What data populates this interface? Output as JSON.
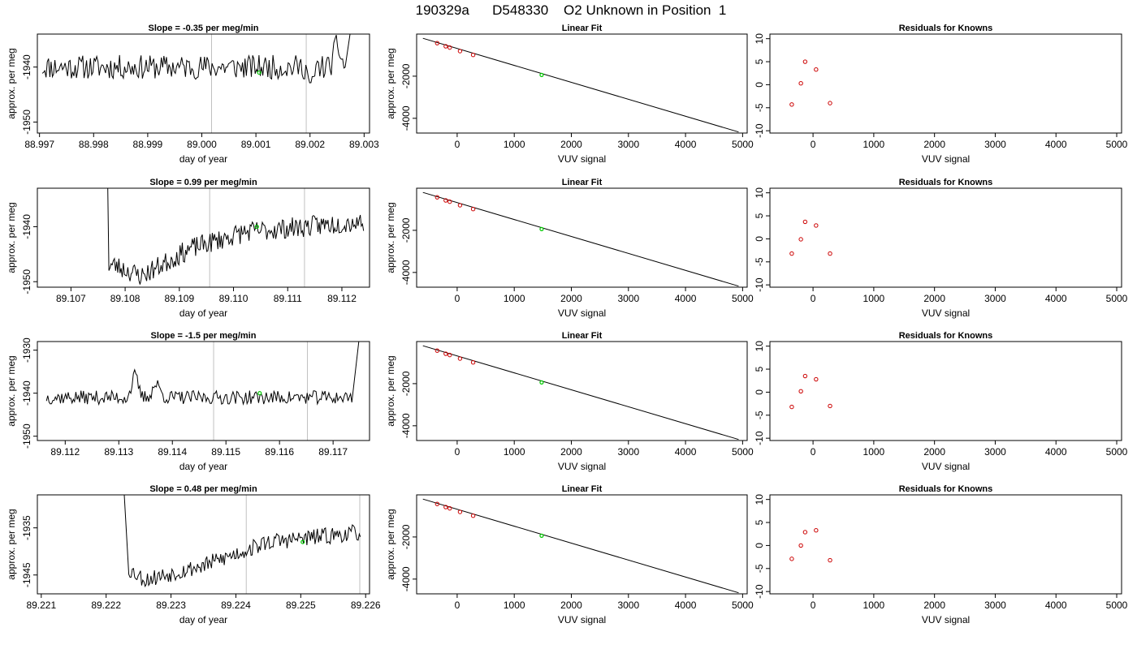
{
  "figure_title": "190329a      D548330    O2 Unknown in Position  1",
  "colors": {
    "trace": "#000000",
    "marker_lines": "#c0c0c0",
    "unknown": "#00cc00",
    "known": "#cc0000",
    "frame": "#000000"
  },
  "chart_data": [
    {
      "type": "line",
      "row": 0,
      "col": 0,
      "title": "Slope =  -0.35  per meg/min",
      "xlabel": "day of year",
      "ylabel": "approx. per meg",
      "xlim": [
        88.99696,
        89.0031
      ],
      "ylim": [
        -1952,
        -1934
      ],
      "xticks": [
        88.997,
        88.998,
        88.999,
        89.0,
        89.001,
        89.002,
        89.003
      ],
      "xtick_labels": [
        "88.997",
        "88.998",
        "88.999",
        "89.000",
        "89.001",
        "89.002",
        "89.003"
      ],
      "yticks": [
        -1940,
        -1950
      ],
      "ytick_labels": [
        "-1940",
        "-1950"
      ],
      "vlines": [
        89.00018,
        89.00193
      ],
      "trace": {
        "x0": 88.99705,
        "x1": 89.00265,
        "n": 240,
        "base": -1940,
        "noise": 2.2,
        "seed": 11,
        "bumps": [
          [
            89.0025,
            4,
            8e-05
          ],
          [
            89.00202,
            -4,
            6e-05
          ]
        ],
        "end_rise": [
          89.00265,
          89.0028,
          -1930
        ]
      },
      "unknown_point": {
        "x": 89.00106,
        "y": -1941
      }
    },
    {
      "type": "scatter+line",
      "row": 0,
      "col": 1,
      "title": "Linear Fit",
      "xlabel": "VUV signal",
      "ylabel": "approx. per meg",
      "xlim": [
        -710,
        5080
      ],
      "ylim": [
        -4700,
        0
      ],
      "xticks": [
        0,
        1000,
        2000,
        3000,
        4000,
        5000
      ],
      "xtick_labels": [
        "0",
        "1000",
        "2000",
        "3000",
        "4000",
        "5000"
      ],
      "yticks": [
        -2000,
        -4000
      ],
      "ytick_labels": [
        "-2000",
        "-4000"
      ],
      "fit_line": {
        "x": [
          -600,
          4930
        ],
        "y": [
          -200,
          -4650
        ]
      },
      "knowns": {
        "x": [
          -350,
          -200,
          -130,
          50,
          280
        ],
        "y": [
          -430,
          -580,
          -640,
          -810,
          -990
        ]
      },
      "unknown_point": {
        "x": 1480,
        "y": -1940
      }
    },
    {
      "type": "scatter",
      "row": 0,
      "col": 2,
      "title": "Residuals for Knowns",
      "xlabel": "VUV signal",
      "ylabel": "",
      "xlim": [
        -710,
        5080
      ],
      "ylim": [
        -10.5,
        11
      ],
      "xticks": [
        0,
        1000,
        2000,
        3000,
        4000,
        5000
      ],
      "xtick_labels": [
        "0",
        "1000",
        "2000",
        "3000",
        "4000",
        "5000"
      ],
      "yticks": [
        10,
        5,
        0,
        -5,
        -10
      ],
      "ytick_labels": [
        "10",
        "5",
        "0",
        "-5",
        "-10"
      ],
      "knowns": {
        "x": [
          -350,
          -200,
          -130,
          50,
          280
        ],
        "y": [
          -4.3,
          0.3,
          5.0,
          3.3,
          -4.0
        ]
      }
    },
    {
      "type": "line",
      "row": 1,
      "col": 0,
      "title": "Slope =  0.99  per meg/min",
      "xlabel": "day of year",
      "ylabel": "approx. per meg",
      "xlim": [
        89.10638,
        89.11251
      ],
      "ylim": [
        -1951,
        -1933
      ],
      "xticks": [
        89.107,
        89.108,
        89.109,
        89.11,
        89.111,
        89.112
      ],
      "xtick_labels": [
        "89.107",
        "89.108",
        "89.109",
        "89.110",
        "89.111",
        "89.112"
      ],
      "yticks": [
        -1940,
        -1950
      ],
      "ytick_labels": [
        "-1940",
        "-1950"
      ],
      "vlines": [
        89.10956,
        89.11131
      ],
      "trace": {
        "x0": 89.1077,
        "x1": 89.1124,
        "n": 230,
        "base": -1940,
        "noise": 1.9,
        "seed": 23,
        "trend": [
          [
            89.1078,
            -1947
          ],
          [
            89.1083,
            -1949
          ],
          [
            89.1092,
            -1944
          ],
          [
            89.1102,
            -1941
          ],
          [
            89.1124,
            -1939
          ]
        ],
        "start_drop": [
          89.10768,
          89.1078,
          -1933
        ]
      },
      "unknown_point": {
        "x": 89.11043,
        "y": -1940
      }
    },
    {
      "type": "scatter+line",
      "row": 1,
      "col": 1,
      "title": "Linear Fit",
      "xlabel": "VUV signal",
      "ylabel": "approx. per meg",
      "xlim": [
        -710,
        5080
      ],
      "ylim": [
        -4700,
        0
      ],
      "xticks": [
        0,
        1000,
        2000,
        3000,
        4000,
        5000
      ],
      "xtick_labels": [
        "0",
        "1000",
        "2000",
        "3000",
        "4000",
        "5000"
      ],
      "yticks": [
        -2000,
        -4000
      ],
      "ytick_labels": [
        "-2000",
        "-4000"
      ],
      "fit_line": {
        "x": [
          -600,
          4930
        ],
        "y": [
          -200,
          -4650
        ]
      },
      "knowns": {
        "x": [
          -350,
          -200,
          -130,
          50,
          280
        ],
        "y": [
          -430,
          -580,
          -640,
          -810,
          -990
        ]
      },
      "unknown_point": {
        "x": 1480,
        "y": -1940
      }
    },
    {
      "type": "scatter",
      "row": 1,
      "col": 2,
      "title": "Residuals for Knowns",
      "xlabel": "VUV signal",
      "ylabel": "",
      "xlim": [
        -710,
        5080
      ],
      "ylim": [
        -10.5,
        11
      ],
      "xticks": [
        0,
        1000,
        2000,
        3000,
        4000,
        5000
      ],
      "xtick_labels": [
        "0",
        "1000",
        "2000",
        "3000",
        "4000",
        "5000"
      ],
      "yticks": [
        10,
        5,
        0,
        -5,
        -10
      ],
      "ytick_labels": [
        "10",
        "5",
        "0",
        "-5",
        "-10"
      ],
      "knowns": {
        "x": [
          -350,
          -200,
          -130,
          50,
          280
        ],
        "y": [
          -3.2,
          -0.1,
          3.7,
          2.9,
          -3.2
        ]
      }
    },
    {
      "type": "line",
      "row": 2,
      "col": 0,
      "title": "Slope =  -1.5  per meg/min",
      "xlabel": "day of year",
      "ylabel": "approx. per meg",
      "xlim": [
        89.11148,
        89.11768
      ],
      "ylim": [
        -1951,
        -1928
      ],
      "xticks": [
        89.112,
        89.113,
        89.114,
        89.115,
        89.116,
        89.117
      ],
      "xtick_labels": [
        "89.112",
        "89.113",
        "89.114",
        "89.115",
        "89.116",
        "89.117"
      ],
      "yticks": [
        -1930,
        -1940,
        -1950
      ],
      "ytick_labels": [
        "-1930",
        "-1940",
        "-1950"
      ],
      "vlines": [
        89.11477,
        89.11652
      ],
      "trace": {
        "x0": 89.11165,
        "x1": 89.11735,
        "n": 240,
        "base": -1941,
        "noise": 1.6,
        "seed": 37,
        "bumps": [
          [
            89.1133,
            5,
            8e-05
          ],
          [
            89.1137,
            3,
            0.0001
          ]
        ],
        "end_rise": [
          89.11735,
          89.11748,
          -1928
        ]
      },
      "unknown_point": {
        "x": 89.11563,
        "y": -1940
      }
    },
    {
      "type": "scatter+line",
      "row": 2,
      "col": 1,
      "title": "Linear Fit",
      "xlabel": "VUV signal",
      "ylabel": "approx. per meg",
      "xlim": [
        -710,
        5080
      ],
      "ylim": [
        -4700,
        0
      ],
      "xticks": [
        0,
        1000,
        2000,
        3000,
        4000,
        5000
      ],
      "xtick_labels": [
        "0",
        "1000",
        "2000",
        "3000",
        "4000",
        "5000"
      ],
      "yticks": [
        -2000,
        -4000
      ],
      "ytick_labels": [
        "-2000",
        "-4000"
      ],
      "fit_line": {
        "x": [
          -600,
          4930
        ],
        "y": [
          -200,
          -4650
        ]
      },
      "knowns": {
        "x": [
          -350,
          -200,
          -130,
          50,
          280
        ],
        "y": [
          -430,
          -580,
          -640,
          -810,
          -990
        ]
      },
      "unknown_point": {
        "x": 1480,
        "y": -1940
      }
    },
    {
      "type": "scatter",
      "row": 2,
      "col": 2,
      "title": "Residuals for Knowns",
      "xlabel": "VUV signal",
      "ylabel": "",
      "xlim": [
        -710,
        5080
      ],
      "ylim": [
        -10.5,
        11
      ],
      "xticks": [
        0,
        1000,
        2000,
        3000,
        4000,
        5000
      ],
      "xtick_labels": [
        "0",
        "1000",
        "2000",
        "3000",
        "4000",
        "5000"
      ],
      "yticks": [
        10,
        5,
        0,
        -5,
        -10
      ],
      "ytick_labels": [
        "10",
        "5",
        "0",
        "-5",
        "-10"
      ],
      "knowns": {
        "x": [
          -350,
          -200,
          -130,
          50,
          280
        ],
        "y": [
          -3.2,
          0.2,
          3.5,
          2.8,
          -3.0
        ]
      }
    },
    {
      "type": "line",
      "row": 3,
      "col": 0,
      "title": "Slope =  0.48  per meg/min",
      "xlabel": "day of year",
      "ylabel": "approx. per meg",
      "xlim": [
        89.22094,
        89.22606
      ],
      "ylim": [
        -1949,
        -1928
      ],
      "xticks": [
        89.221,
        89.222,
        89.223,
        89.224,
        89.225,
        89.226
      ],
      "xtick_labels": [
        "89.221",
        "89.222",
        "89.223",
        "89.224",
        "89.225",
        "89.226"
      ],
      "yticks": [
        -1935,
        -1945
      ],
      "ytick_labels": [
        "-1935",
        "-1945"
      ],
      "vlines": [
        89.22416,
        89.22591
      ],
      "trace": {
        "x0": 89.22235,
        "x1": 89.22592,
        "n": 200,
        "base": -1940,
        "noise": 1.8,
        "seed": 53,
        "trend": [
          [
            89.22238,
            -1944
          ],
          [
            89.2226,
            -1946
          ],
          [
            89.2235,
            -1943
          ],
          [
            89.2245,
            -1938
          ],
          [
            89.2259,
            -1936
          ]
        ],
        "start_drop": [
          89.22228,
          89.22238,
          -1928
        ]
      },
      "unknown_point": {
        "x": 89.22503,
        "y": -1938
      }
    },
    {
      "type": "scatter+line",
      "row": 3,
      "col": 1,
      "title": "Linear Fit",
      "xlabel": "VUV signal",
      "ylabel": "approx. per meg",
      "xlim": [
        -710,
        5080
      ],
      "ylim": [
        -4700,
        0
      ],
      "xticks": [
        0,
        1000,
        2000,
        3000,
        4000,
        5000
      ],
      "xtick_labels": [
        "0",
        "1000",
        "2000",
        "3000",
        "4000",
        "5000"
      ],
      "yticks": [
        -2000,
        -4000
      ],
      "ytick_labels": [
        "-2000",
        "-4000"
      ],
      "fit_line": {
        "x": [
          -600,
          4930
        ],
        "y": [
          -200,
          -4650
        ]
      },
      "knowns": {
        "x": [
          -350,
          -200,
          -130,
          50,
          280
        ],
        "y": [
          -430,
          -580,
          -640,
          -810,
          -990
        ]
      },
      "unknown_point": {
        "x": 1480,
        "y": -1940
      }
    },
    {
      "type": "scatter",
      "row": 3,
      "col": 2,
      "title": "Residuals for Knowns",
      "xlabel": "VUV signal",
      "ylabel": "",
      "xlim": [
        -710,
        5080
      ],
      "ylim": [
        -10.5,
        11
      ],
      "xticks": [
        0,
        1000,
        2000,
        3000,
        4000,
        5000
      ],
      "xtick_labels": [
        "0",
        "1000",
        "2000",
        "3000",
        "4000",
        "5000"
      ],
      "yticks": [
        10,
        5,
        0,
        -5,
        -10
      ],
      "ytick_labels": [
        "10",
        "5",
        "0",
        "-5",
        "-10"
      ],
      "knowns": {
        "x": [
          -350,
          -200,
          -130,
          50,
          280
        ],
        "y": [
          -2.9,
          0.0,
          2.9,
          3.3,
          -3.2
        ]
      }
    }
  ]
}
